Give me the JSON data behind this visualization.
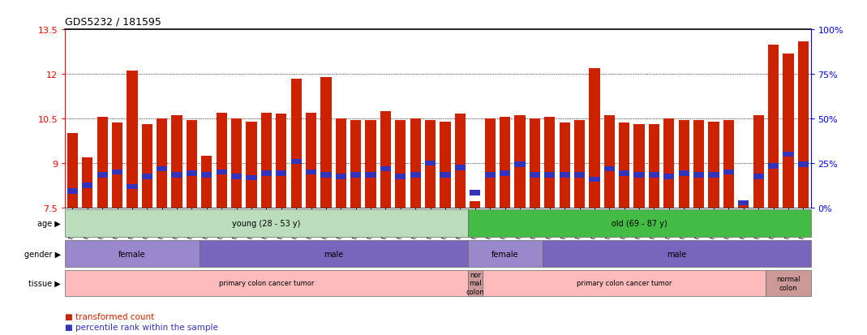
{
  "title": "GDS5232 / 181595",
  "samples": [
    "GSM615919",
    "GSM615921",
    "GSM615922",
    "GSM615925",
    "GSM615926",
    "GSM615933",
    "GSM615939",
    "GSM615941",
    "GSM615944",
    "GSM615945",
    "GSM615947",
    "GSM615948",
    "GSM615951",
    "GSM615918",
    "GSM615927",
    "GSM615929",
    "GSM615931",
    "GSM615937",
    "GSM615938",
    "GSM615940",
    "GSM615946",
    "GSM615952",
    "GSM615953",
    "GSM615955",
    "GSM721722",
    "GSM721723",
    "GSM721724",
    "GSM615917",
    "GSM615920",
    "GSM615923",
    "GSM615928",
    "GSM615934",
    "GSM615950",
    "GSM615954",
    "GSM615956",
    "GSM615958",
    "GSM615924",
    "GSM615930",
    "GSM615932",
    "GSM615935",
    "GSM615936",
    "GSM615942",
    "GSM615943",
    "GSM615949",
    "GSM615957",
    "GSM721720",
    "GSM721721",
    "GSM615959",
    "GSM615960",
    "GSM615961"
  ],
  "bar_values": [
    10.0,
    9.2,
    10.55,
    10.35,
    12.1,
    10.3,
    10.5,
    10.6,
    10.45,
    9.25,
    10.7,
    10.5,
    10.4,
    10.7,
    10.65,
    11.85,
    10.7,
    11.9,
    10.5,
    10.45,
    10.45,
    10.75,
    10.45,
    10.5,
    10.45,
    10.4,
    10.65,
    7.7,
    10.5,
    10.55,
    10.6,
    10.5,
    10.55,
    10.35,
    10.45,
    12.2,
    10.6,
    10.35,
    10.3,
    10.3,
    10.5,
    10.45,
    10.45,
    10.4,
    10.45,
    7.6,
    10.6,
    13.0,
    12.7,
    13.1
  ],
  "percentile_values": [
    8.05,
    8.25,
    8.6,
    8.7,
    8.2,
    8.55,
    8.8,
    8.6,
    8.65,
    8.6,
    8.7,
    8.55,
    8.5,
    8.65,
    8.65,
    9.05,
    8.7,
    8.6,
    8.55,
    8.6,
    8.6,
    8.8,
    8.55,
    8.6,
    9.0,
    8.6,
    8.85,
    8.0,
    8.6,
    8.65,
    8.95,
    8.6,
    8.6,
    8.6,
    8.6,
    8.45,
    8.8,
    8.65,
    8.6,
    8.6,
    8.55,
    8.65,
    8.6,
    8.6,
    8.7,
    7.65,
    8.55,
    8.9,
    9.3,
    8.95
  ],
  "ylim": [
    7.5,
    13.5
  ],
  "yticks": [
    7.5,
    9.0,
    10.5,
    12.0,
    13.5
  ],
  "ytick_labels": [
    "7.5",
    "9",
    "10.5",
    "12",
    "13.5"
  ],
  "right_yticks_pct": [
    0,
    25,
    50,
    75,
    100
  ],
  "bar_color": "#cc2200",
  "blue_color": "#3333bb",
  "bar_bottom": 7.5,
  "age_groups": [
    {
      "label": "young (28 - 53 y)",
      "start": 0,
      "end": 27,
      "color": "#bbddbb"
    },
    {
      "label": "old (69 - 87 y)",
      "start": 27,
      "end": 50,
      "color": "#44bb44"
    }
  ],
  "gender_groups": [
    {
      "label": "female",
      "start": 0,
      "end": 9,
      "color": "#9988cc"
    },
    {
      "label": "male",
      "start": 9,
      "end": 27,
      "color": "#7766bb"
    },
    {
      "label": "female",
      "start": 27,
      "end": 32,
      "color": "#9988cc"
    },
    {
      "label": "male",
      "start": 32,
      "end": 50,
      "color": "#7766bb"
    }
  ],
  "tissue_groups": [
    {
      "label": "primary colon cancer tumor",
      "start": 0,
      "end": 27,
      "color": "#ffbbbb"
    },
    {
      "label": "nor\nmal\ncolon",
      "start": 27,
      "end": 28,
      "color": "#cc9999"
    },
    {
      "label": "primary colon cancer tumor",
      "start": 28,
      "end": 47,
      "color": "#ffbbbb"
    },
    {
      "label": "normal\ncolon",
      "start": 47,
      "end": 50,
      "color": "#cc9999"
    }
  ]
}
